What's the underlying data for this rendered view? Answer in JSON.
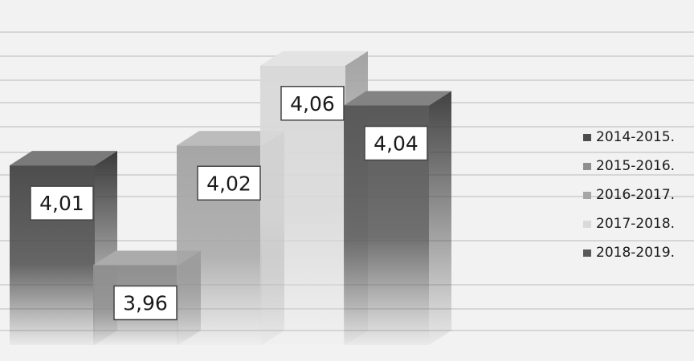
{
  "chart_data": {
    "type": "bar",
    "style": "3d-column",
    "categories": [
      "2014-2015.",
      "2015-2016.",
      "2016-2017.",
      "2017-2018.",
      "2018-2019."
    ],
    "values": [
      4.01,
      3.96,
      4.02,
      4.06,
      4.04
    ],
    "data_labels": [
      "4,01",
      "3,96",
      "4,02",
      "4,06",
      "4,04"
    ],
    "legend": {
      "position": "right",
      "entries": [
        "2014-2015.",
        "2015-2016.",
        "2016-2017.",
        "2017-2018.",
        "2018-2019."
      ]
    },
    "title": "",
    "xlabel": "",
    "ylabel": "",
    "axes_visible": false,
    "grid": false,
    "colors": [
      "#4d4d4d",
      "#8f8f8f",
      "#a6a6a6",
      "#d9d9d9",
      "#595959"
    ]
  }
}
